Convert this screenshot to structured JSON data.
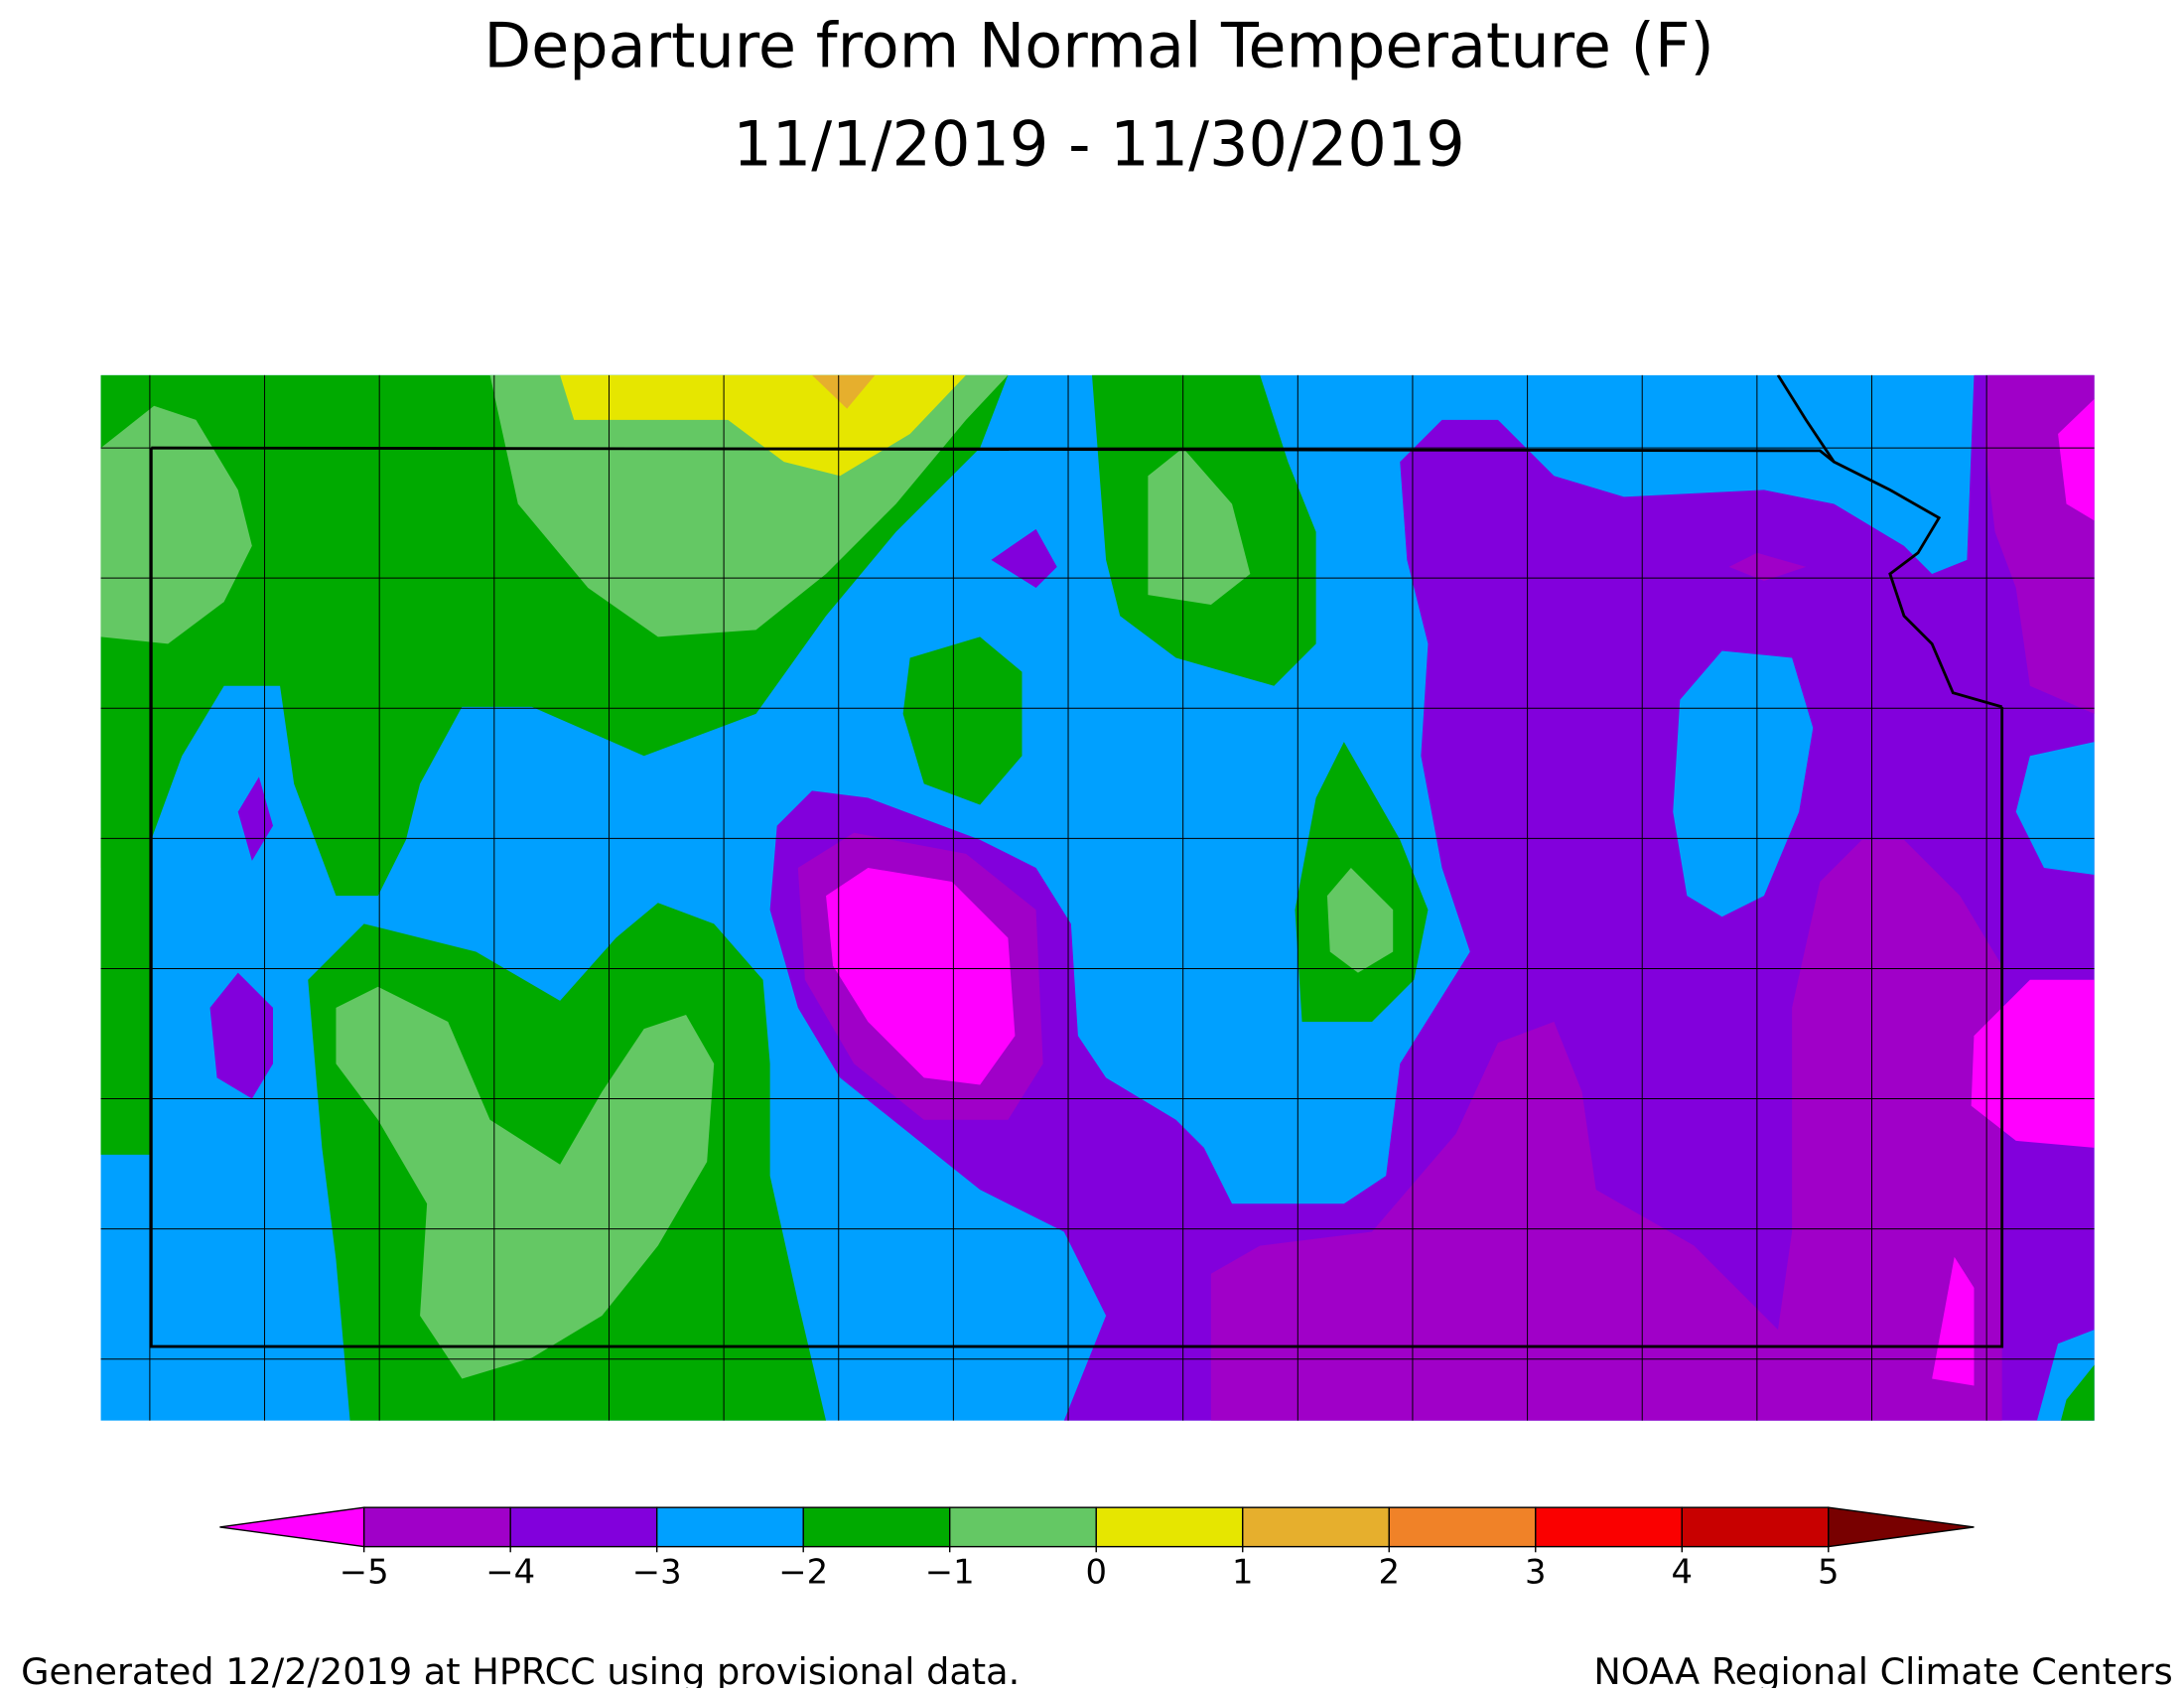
{
  "title": {
    "line1": "Departure from Normal Temperature (F)",
    "line2": "11/1/2019 - 11/30/2019"
  },
  "legend": {
    "ticks": [
      {
        "value": -5,
        "label": "−5"
      },
      {
        "value": -4,
        "label": "−4"
      },
      {
        "value": -3,
        "label": "−3"
      },
      {
        "value": -2,
        "label": "−2"
      },
      {
        "value": -1,
        "label": "−1"
      },
      0,
      1,
      2,
      3,
      4,
      5
    ],
    "colors": [
      "#ff00ff",
      "#a000c8",
      "#8200dc",
      "#00a0ff",
      "#00aa00",
      "#64c864",
      "#e6e600",
      "#e6af2d",
      "#f08228",
      "#fa0000",
      "#c80000",
      "#780000"
    ]
  },
  "footer": {
    "left": "Generated 12/2/2019 at HPRCC using provisional data.",
    "right": "NOAA Regional Climate Centers"
  }
}
